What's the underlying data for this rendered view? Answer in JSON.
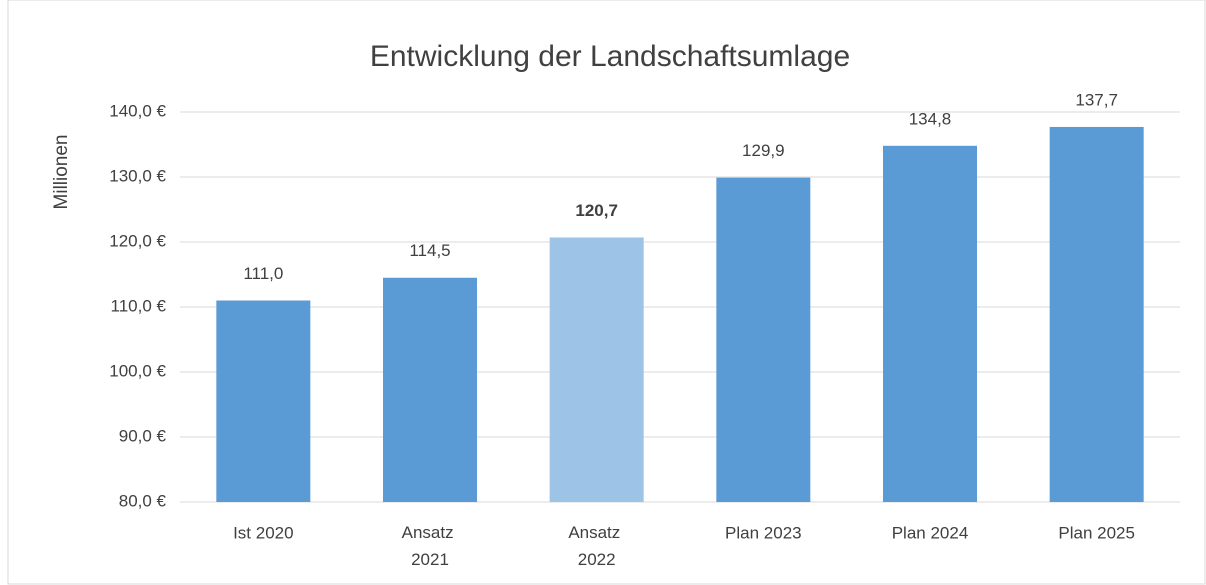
{
  "chart_data": {
    "type": "bar",
    "title": "Entwicklung der Landschaftsumlage",
    "y_label": "Millionen",
    "categories": [
      "Ist 2020",
      "Ansatz 2021",
      "Ansatz 2022",
      "Plan 2023",
      "Plan 2024",
      "Plan 2025"
    ],
    "values": [
      111.0,
      114.5,
      120.7,
      129.9,
      134.8,
      137.7
    ],
    "value_labels": [
      "111,0",
      "114,5",
      "120,7",
      "129,9",
      "134,8",
      "137,7"
    ],
    "value_label_bold": [
      false,
      false,
      true,
      false,
      false,
      false
    ],
    "colors": [
      "#5b9bd5",
      "#5b9bd5",
      "#9dc3e6",
      "#5b9bd5",
      "#5b9bd5",
      "#5b9bd5"
    ],
    "ylim": [
      80,
      140
    ],
    "yticks": [
      {
        "value": 80,
        "label": "80,0 €"
      },
      {
        "value": 90,
        "label": "90,0 €"
      },
      {
        "value": 100,
        "label": "100,0 €"
      },
      {
        "value": 110,
        "label": "110,0 €"
      },
      {
        "value": 120,
        "label": "120,0 €"
      },
      {
        "value": 130,
        "label": "130,0 €"
      },
      {
        "value": 140,
        "label": "140,0 €"
      }
    ],
    "grid": true
  }
}
